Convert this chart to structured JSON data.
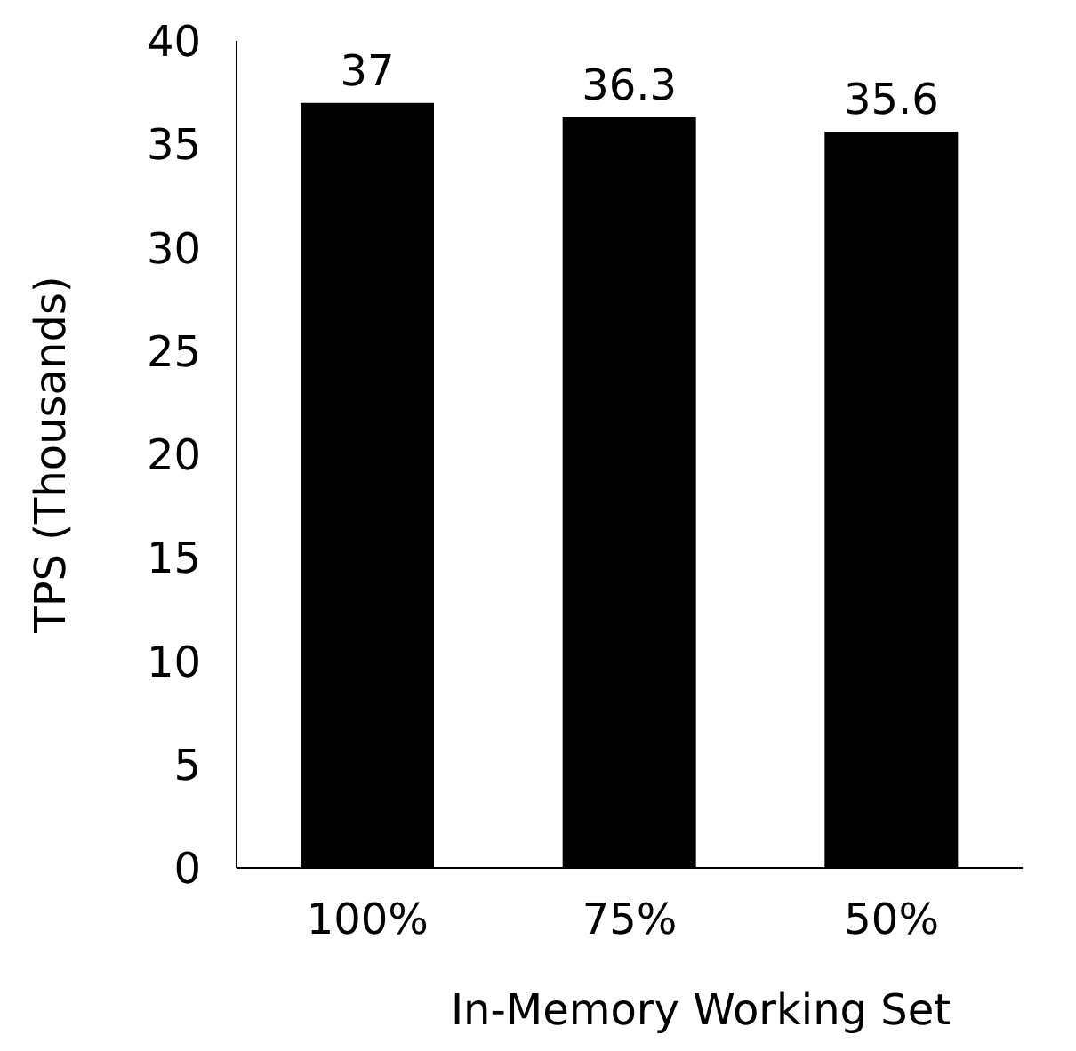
{
  "chart_data": {
    "type": "bar",
    "xlabel": "In-Memory Working Set",
    "ylabel": "TPS (Thousands)",
    "categories": [
      "100%",
      "75%",
      "50%"
    ],
    "values": [
      37,
      36.3,
      35.6
    ],
    "color": "#000000",
    "ylim": [
      0,
      40
    ],
    "yticks": [
      0,
      5,
      10,
      15,
      20,
      25,
      30,
      35,
      40
    ],
    "grid": false,
    "data_labels": true
  }
}
